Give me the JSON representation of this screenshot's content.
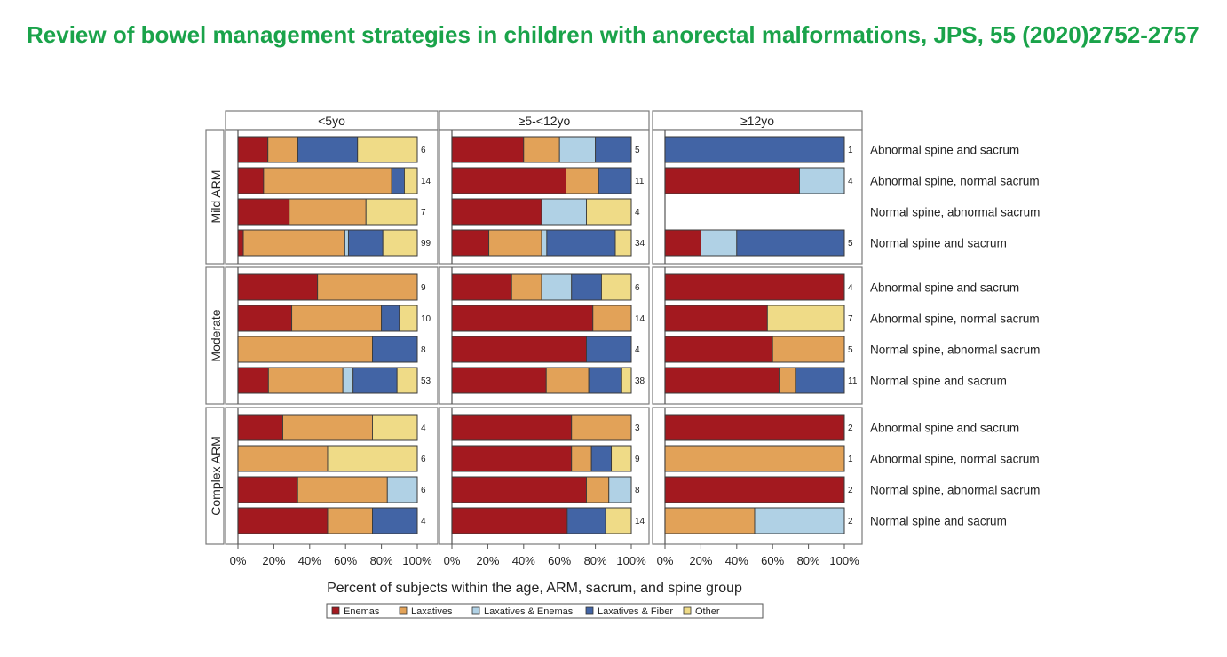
{
  "page": {
    "title": "Review of bowel management strategies in children with anorectal malformations, JPS, 55 (2020)2752-2757",
    "title_color": "#1aa34a"
  },
  "chart_data": {
    "type": "bar",
    "orientation": "horizontal",
    "stacked": true,
    "xlabel": "Percent of subjects within the age, ARM, sacrum, and spine group",
    "xlim": [
      0,
      100
    ],
    "x_ticks": [
      "0%",
      "20%",
      "40%",
      "60%",
      "80%",
      "100%"
    ],
    "columns": [
      "<5yo",
      "≥5-<12yo",
      "≥12yo"
    ],
    "rows": [
      "Mild ARM",
      "Moderate",
      "Complex ARM"
    ],
    "categories": [
      "Abnormal spine and sacrum",
      "Abnormal spine, normal sacrum",
      "Normal spine, abnormal sacrum",
      "Normal spine and sacrum"
    ],
    "legend": {
      "position": "bottom",
      "items": [
        {
          "key": "E",
          "label": "Enemas",
          "color": "#a3191f"
        },
        {
          "key": "L",
          "label": "Laxatives",
          "color": "#e2a258"
        },
        {
          "key": "LE",
          "label": "Laxatives & Enemas",
          "color": "#b0d1e5"
        },
        {
          "key": "F",
          "label": "Laxatives & Fiber",
          "color": "#4264a5"
        },
        {
          "key": "O",
          "label": "Other",
          "color": "#efdb87"
        }
      ]
    },
    "panels": [
      {
        "row": "Mild ARM",
        "col": "<5yo",
        "bars": [
          {
            "n": "6",
            "E": 16.7,
            "L": 16.7,
            "LE": 0,
            "F": 33.3,
            "O": 33.3
          },
          {
            "n": "14",
            "E": 14.3,
            "L": 71.4,
            "LE": 0,
            "F": 7.1,
            "O": 7.2
          },
          {
            "n": "7",
            "E": 28.6,
            "L": 42.8,
            "LE": 0,
            "F": 0,
            "O": 28.6
          },
          {
            "n": "99",
            "E": 3.0,
            "L": 56.6,
            "LE": 2.0,
            "F": 19.2,
            "O": 19.2
          }
        ]
      },
      {
        "row": "Mild ARM",
        "col": "≥5-<12yo",
        "bars": [
          {
            "n": "5",
            "E": 40,
            "L": 20,
            "LE": 20,
            "F": 20,
            "O": 0
          },
          {
            "n": "11",
            "E": 63.6,
            "L": 18.2,
            "LE": 0,
            "F": 18.2,
            "O": 0
          },
          {
            "n": "4",
            "E": 50,
            "L": 0,
            "LE": 25,
            "F": 0,
            "O": 25
          },
          {
            "n": "34",
            "E": 20.6,
            "L": 29.4,
            "LE": 2.9,
            "F": 38.2,
            "O": 8.9
          }
        ]
      },
      {
        "row": "Mild ARM",
        "col": "≥12yo",
        "bars": [
          {
            "n": "1",
            "E": 0,
            "L": 0,
            "LE": 0,
            "F": 100,
            "O": 0
          },
          {
            "n": "4",
            "E": 75,
            "L": 0,
            "LE": 25,
            "F": 0,
            "O": 0
          },
          null,
          {
            "n": "5",
            "E": 20,
            "L": 0,
            "LE": 20,
            "F": 60,
            "O": 0
          }
        ]
      },
      {
        "row": "Moderate",
        "col": "<5yo",
        "bars": [
          {
            "n": "9",
            "E": 44.4,
            "L": 55.6,
            "LE": 0,
            "F": 0,
            "O": 0
          },
          {
            "n": "10",
            "E": 30,
            "L": 50,
            "LE": 0,
            "F": 10,
            "O": 10
          },
          {
            "n": "8",
            "E": 0,
            "L": 75,
            "LE": 0,
            "F": 25,
            "O": 0
          },
          {
            "n": "53",
            "E": 17.0,
            "L": 41.5,
            "LE": 5.7,
            "F": 24.5,
            "O": 11.3
          }
        ]
      },
      {
        "row": "Moderate",
        "col": "≥5-<12yo",
        "bars": [
          {
            "n": "6",
            "E": 33.3,
            "L": 16.7,
            "LE": 16.7,
            "F": 16.7,
            "O": 16.6
          },
          {
            "n": "14",
            "E": 78.6,
            "L": 21.4,
            "LE": 0,
            "F": 0,
            "O": 0
          },
          {
            "n": "4",
            "E": 75,
            "L": 0,
            "LE": 0,
            "F": 25,
            "O": 0
          },
          {
            "n": "38",
            "E": 52.6,
            "L": 23.7,
            "LE": 0,
            "F": 18.4,
            "O": 5.3
          }
        ]
      },
      {
        "row": "Moderate",
        "col": "≥12yo",
        "bars": [
          {
            "n": "4",
            "E": 100,
            "L": 0,
            "LE": 0,
            "F": 0,
            "O": 0
          },
          {
            "n": "7",
            "E": 57.1,
            "L": 0,
            "LE": 0,
            "F": 0,
            "O": 42.9
          },
          {
            "n": "5",
            "E": 60,
            "L": 40,
            "LE": 0,
            "F": 0,
            "O": 0
          },
          {
            "n": "11",
            "E": 63.6,
            "L": 9.1,
            "LE": 0,
            "F": 27.3,
            "O": 0
          }
        ]
      },
      {
        "row": "Complex ARM",
        "col": "<5yo",
        "bars": [
          {
            "n": "4",
            "E": 25,
            "L": 50,
            "LE": 0,
            "F": 0,
            "O": 25
          },
          {
            "n": "6",
            "E": 0,
            "L": 50,
            "LE": 0,
            "F": 0,
            "O": 50
          },
          {
            "n": "6",
            "E": 33.3,
            "L": 50,
            "LE": 16.7,
            "F": 0,
            "O": 0
          },
          {
            "n": "4",
            "E": 50,
            "L": 25,
            "LE": 0,
            "F": 25,
            "O": 0
          }
        ]
      },
      {
        "row": "Complex ARM",
        "col": "≥5-<12yo",
        "bars": [
          {
            "n": "3",
            "E": 66.7,
            "L": 33.3,
            "LE": 0,
            "F": 0,
            "O": 0
          },
          {
            "n": "9",
            "E": 66.7,
            "L": 11.1,
            "LE": 0,
            "F": 11.1,
            "O": 11.1
          },
          {
            "n": "8",
            "E": 75,
            "L": 12.5,
            "LE": 12.5,
            "F": 0,
            "O": 0
          },
          {
            "n": "14",
            "E": 64.3,
            "L": 0,
            "LE": 0,
            "F": 21.4,
            "O": 14.3
          }
        ]
      },
      {
        "row": "Complex ARM",
        "col": "≥12yo",
        "bars": [
          {
            "n": "2",
            "E": 100,
            "L": 0,
            "LE": 0,
            "F": 0,
            "O": 0
          },
          {
            "n": "1",
            "E": 0,
            "L": 100,
            "LE": 0,
            "F": 0,
            "O": 0
          },
          {
            "n": "2",
            "E": 100,
            "L": 0,
            "LE": 0,
            "F": 0,
            "O": 0
          },
          {
            "n": "2",
            "E": 0,
            "L": 50,
            "LE": 50,
            "F": 0,
            "O": 0
          }
        ]
      }
    ]
  }
}
